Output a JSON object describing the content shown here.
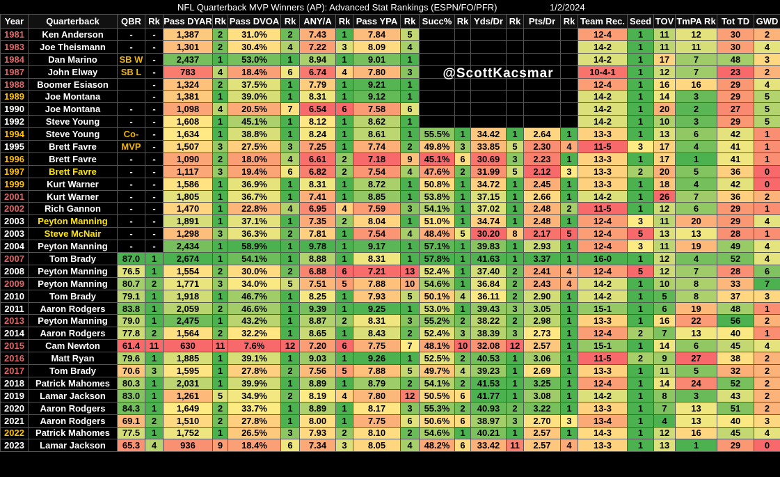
{
  "header": {
    "title": "NFL Quarterback MVP Winners (AP): Advanced Stat Rankings (ESPN/FO/PFR)",
    "date": "1/2/2024"
  },
  "watermark": "@ScottKacsmar",
  "table": {
    "columns": [
      "Year",
      "Quarterback",
      "QBR",
      "Rk",
      "Pass DYAR",
      "Rk",
      "Pass DVOA",
      "Rk",
      "ANY/A",
      "Rk",
      "Pass YPA",
      "Rk",
      "Succ%",
      "Rk",
      "Yds/Dr",
      "Rk",
      "Pts/Dr",
      "Rk",
      "Team Rec.",
      "Seed",
      "TOV",
      "TmPA Rk",
      "Tot TD",
      "GWD"
    ],
    "rows": [
      [
        "1981",
        "Ken Anderson",
        "-",
        "-",
        "1,387",
        "2",
        "31.0%",
        "2",
        "7.43",
        "1",
        "7.84",
        "5",
        null,
        null,
        null,
        null,
        null,
        null,
        "12-4",
        "1",
        "11",
        "12",
        "30",
        "2"
      ],
      [
        "1983",
        "Joe Theismann",
        "-",
        "-",
        "1,301",
        "2",
        "30.4%",
        "4",
        "7.22",
        "3",
        "8.09",
        "4",
        null,
        null,
        null,
        null,
        null,
        null,
        "14-2",
        "1",
        "11",
        "11",
        "30",
        "4"
      ],
      [
        "1984",
        "Dan Marino",
        "SB W",
        "-",
        "2,437",
        "1",
        "53.0%",
        "1",
        "8.94",
        "1",
        "9.01",
        "1",
        null,
        null,
        null,
        null,
        null,
        null,
        "14-2",
        "1",
        "17",
        "7",
        "48",
        "3"
      ],
      [
        "1987",
        "John Elway",
        "SB L",
        "-",
        "783",
        "4",
        "18.4%",
        "6",
        "6.74",
        "4",
        "7.80",
        "3",
        null,
        null,
        null,
        null,
        null,
        null,
        "10-4-1",
        "1",
        "12",
        "7",
        "23",
        "2"
      ],
      [
        "1988",
        "Boomer Esiason",
        null,
        "-",
        "1,324",
        "2",
        "37.5%",
        "1",
        "7.79",
        "1",
        "9.21",
        "1",
        null,
        null,
        null,
        null,
        null,
        null,
        "12-4",
        "1",
        "16",
        "16",
        "29",
        "4"
      ],
      [
        "1989",
        "Joe Montana",
        null,
        "-",
        "1,381",
        "1",
        "39.0%",
        "1",
        "8.31",
        "1",
        "9.12",
        "1",
        null,
        null,
        null,
        null,
        null,
        null,
        "14-2",
        "1",
        "14",
        "3",
        "29",
        "5"
      ],
      [
        "1990",
        "Joe Montana",
        "-",
        "-",
        "1,098",
        "4",
        "20.5%",
        "7",
        "6.54",
        "6",
        "7.58",
        "6",
        null,
        null,
        null,
        null,
        null,
        null,
        "14-2",
        "1",
        "20",
        "2",
        "27",
        "5"
      ],
      [
        "1992",
        "Steve Young",
        "-",
        "-",
        "1,608",
        "1",
        "45.1%",
        "1",
        "8.12",
        "1",
        "8.62",
        "1",
        null,
        null,
        null,
        null,
        null,
        null,
        "14-2",
        "1",
        "10",
        "3",
        "29",
        "5"
      ],
      [
        "1994",
        "Steve Young",
        "Co-",
        "-",
        "1,634",
        "1",
        "38.8%",
        "1",
        "8.24",
        "1",
        "8.61",
        "1",
        "55.5%",
        "1",
        "34.42",
        "1",
        "2.64",
        "1",
        "13-3",
        "1",
        "13",
        "6",
        "42",
        "1"
      ],
      [
        "1995",
        "Brett Favre",
        "MVP",
        "-",
        "1,507",
        "3",
        "27.5%",
        "3",
        "7.25",
        "1",
        "7.74",
        "2",
        "49.8%",
        "3",
        "33.85",
        "5",
        "2.30",
        "4",
        "11-5",
        "3",
        "17",
        "4",
        "41",
        "1"
      ],
      [
        "1996",
        "Brett Favre",
        "-",
        "-",
        "1,090",
        "2",
        "18.0%",
        "4",
        "6.61",
        "2",
        "7.18",
        "9",
        "45.1%",
        "6",
        "30.69",
        "3",
        "2.23",
        "1",
        "13-3",
        "1",
        "17",
        "1",
        "41",
        "1"
      ],
      [
        "1997",
        "Brett Favre",
        "-",
        "-",
        "1,117",
        "3",
        "19.4%",
        "6",
        "6.82",
        "2",
        "7.54",
        "4",
        "47.6%",
        "2",
        "31.99",
        "5",
        "2.12",
        "3",
        "13-3",
        "2",
        "20",
        "5",
        "36",
        "0"
      ],
      [
        "1999",
        "Kurt Warner",
        "-",
        "-",
        "1,586",
        "1",
        "36.9%",
        "1",
        "8.31",
        "1",
        "8.72",
        "1",
        "50.8%",
        "1",
        "34.72",
        "1",
        "2.45",
        "1",
        "13-3",
        "1",
        "18",
        "4",
        "42",
        "0"
      ],
      [
        "2001",
        "Kurt Warner",
        "-",
        "-",
        "1,805",
        "1",
        "36.7%",
        "1",
        "7.41",
        "1",
        "8.85",
        "1",
        "53.8%",
        "1",
        "37.15",
        "1",
        "2.66",
        "1",
        "14-2",
        "1",
        "26",
        "7",
        "36",
        "2"
      ],
      [
        "2002",
        "Rich Gannon",
        "-",
        "-",
        "1,470",
        "1",
        "22.8%",
        "4",
        "6.95",
        "4",
        "7.59",
        "3",
        "54.1%",
        "1",
        "37.02",
        "1",
        "2.48",
        "2",
        "11-5",
        "1",
        "12",
        "6",
        "29",
        "1"
      ],
      [
        "2003",
        "Peyton Manning",
        "-",
        "-",
        "1,891",
        "1",
        "37.1%",
        "1",
        "7.35",
        "2",
        "8.04",
        "1",
        "51.0%",
        "1",
        "34.74",
        "1",
        "2.48",
        "1",
        "12-4",
        "3",
        "11",
        "20",
        "29",
        "4"
      ],
      [
        "2003",
        "Steve McNair",
        "-",
        "-",
        "1,298",
        "3",
        "36.3%",
        "2",
        "7.81",
        "1",
        "7.54",
        "4",
        "48.4%",
        "5",
        "30.20",
        "8",
        "2.17",
        "5",
        "12-4",
        "5",
        "13",
        "13",
        "28",
        "1"
      ],
      [
        "2004",
        "Peyton Manning",
        "-",
        "-",
        "2,434",
        "1",
        "58.9%",
        "1",
        "9.78",
        "1",
        "9.17",
        "1",
        "57.1%",
        "1",
        "39.83",
        "1",
        "2.93",
        "1",
        "12-4",
        "3",
        "11",
        "19",
        "49",
        "4"
      ],
      [
        "2007",
        "Tom Brady",
        "87.0",
        "1",
        "2,674",
        "1",
        "54.1%",
        "1",
        "8.88",
        "1",
        "8.31",
        "1",
        "57.8%",
        "1",
        "41.63",
        "1",
        "3.37",
        "1",
        "16-0",
        "1",
        "12",
        "4",
        "52",
        "4"
      ],
      [
        "2008",
        "Peyton Manning",
        "76.5",
        "1",
        "1,554",
        "2",
        "30.0%",
        "2",
        "6.88",
        "6",
        "7.21",
        "13",
        "52.4%",
        "1",
        "37.40",
        "2",
        "2.41",
        "4",
        "12-4",
        "5",
        "12",
        "7",
        "28",
        "6"
      ],
      [
        "2009",
        "Peyton Manning",
        "80.7",
        "2",
        "1,771",
        "3",
        "34.0%",
        "5",
        "7.51",
        "5",
        "7.88",
        "10",
        "54.6%",
        "1",
        "36.84",
        "2",
        "2.43",
        "4",
        "14-2",
        "1",
        "10",
        "8",
        "33",
        "7"
      ],
      [
        "2010",
        "Tom Brady",
        "79.1",
        "1",
        "1,918",
        "1",
        "46.7%",
        "1",
        "8.25",
        "1",
        "7.93",
        "5",
        "50.1%",
        "4",
        "36.11",
        "2",
        "2.90",
        "1",
        "14-2",
        "1",
        "5",
        "8",
        "37",
        "3"
      ],
      [
        "2011",
        "Aaron Rodgers",
        "83.8",
        "1",
        "2,059",
        "2",
        "46.6%",
        "1",
        "9.39",
        "1",
        "9.25",
        "1",
        "53.0%",
        "1",
        "39.43",
        "3",
        "3.05",
        "1",
        "15-1",
        "1",
        "6",
        "19",
        "48",
        "1"
      ],
      [
        "2013",
        "Peyton Manning",
        "79.0",
        "1",
        "2,475",
        "1",
        "43.2%",
        "1",
        "8.87",
        "2",
        "8.31",
        "3",
        "55.2%",
        "2",
        "38.22",
        "2",
        "2.98",
        "1",
        "13-3",
        "1",
        "16",
        "22",
        "56",
        "2"
      ],
      [
        "2014",
        "Aaron Rodgers",
        "77.8",
        "2",
        "1,564",
        "2",
        "32.2%",
        "1",
        "8.65",
        "1",
        "8.43",
        "2",
        "52.4%",
        "3",
        "38.39",
        "3",
        "2.73",
        "1",
        "12-4",
        "2",
        "7",
        "13",
        "40",
        "1"
      ],
      [
        "2015",
        "Cam Newton",
        "61.4",
        "11",
        "630",
        "11",
        "7.6%",
        "12",
        "7.20",
        "6",
        "7.75",
        "7",
        "48.1%",
        "10",
        "32.08",
        "12",
        "2.57",
        "1",
        "15-1",
        "1",
        "14",
        "6",
        "45",
        "4"
      ],
      [
        "2016",
        "Matt Ryan",
        "79.6",
        "1",
        "1,885",
        "1",
        "39.1%",
        "1",
        "9.03",
        "1",
        "9.26",
        "1",
        "52.5%",
        "2",
        "40.53",
        "1",
        "3.06",
        "1",
        "11-5",
        "2",
        "9",
        "27",
        "38",
        "2"
      ],
      [
        "2017",
        "Tom Brady",
        "70.6",
        "3",
        "1,595",
        "1",
        "27.8%",
        "2",
        "7.56",
        "5",
        "7.88",
        "5",
        "49.7%",
        "4",
        "39.23",
        "1",
        "2.69",
        "1",
        "13-3",
        "1",
        "11",
        "5",
        "32",
        "2"
      ],
      [
        "2018",
        "Patrick Mahomes",
        "80.3",
        "1",
        "2,031",
        "1",
        "39.9%",
        "1",
        "8.89",
        "1",
        "8.79",
        "2",
        "54.1%",
        "2",
        "41.53",
        "1",
        "3.25",
        "1",
        "12-4",
        "1",
        "14",
        "24",
        "52",
        "2"
      ],
      [
        "2019",
        "Lamar Jackson",
        "83.0",
        "1",
        "1,261",
        "5",
        "34.9%",
        "2",
        "8.19",
        "4",
        "7.80",
        "12",
        "50.5%",
        "6",
        "41.77",
        "1",
        "3.08",
        "1",
        "14-2",
        "1",
        "8",
        "3",
        "43",
        "2"
      ],
      [
        "2020",
        "Aaron Rodgers",
        "84.3",
        "1",
        "1,649",
        "2",
        "33.7%",
        "1",
        "8.89",
        "1",
        "8.17",
        "3",
        "55.3%",
        "2",
        "40.93",
        "2",
        "3.22",
        "1",
        "13-3",
        "1",
        "7",
        "13",
        "51",
        "2"
      ],
      [
        "2021",
        "Aaron Rodgers",
        "69.1",
        "2",
        "1,510",
        "2",
        "27.8%",
        "1",
        "8.00",
        "1",
        "7.75",
        "6",
        "50.6%",
        "6",
        "38.97",
        "3",
        "2.70",
        "3",
        "13-4",
        "1",
        "4",
        "13",
        "40",
        "3"
      ],
      [
        "2022",
        "Patrick Mahomes",
        "77.5",
        "1",
        "1,752",
        "1",
        "26.5%",
        "3",
        "7.93",
        "2",
        "8.10",
        "2",
        "54.6%",
        "1",
        "40.21",
        "1",
        "2.57",
        "1",
        "14-3",
        "1",
        "12",
        "16",
        "45",
        "4"
      ],
      [
        "2023",
        "Lamar Jackson",
        "65.3",
        "4",
        "936",
        "9",
        "18.4%",
        "6",
        "7.34",
        "3",
        "8.05",
        "4",
        "48.2%",
        "6",
        "33.42",
        "11",
        "2.57",
        "4",
        "13-3",
        "1",
        "13",
        "1",
        "29",
        "0"
      ]
    ],
    "year_colors": [
      "#e06666",
      "#e06666",
      "#e06666",
      "#e06666",
      "#e06666",
      "#ffc000",
      "#ffffff",
      "#ffffff",
      "#ffc000",
      "#ffffff",
      "#ffc000",
      "#ffc000",
      "#ffc000",
      "#e06666",
      "#e06666",
      "#ffffff",
      "#ffffff",
      "#ffffff",
      "#e06666",
      "#ffffff",
      "#e06666",
      "#ffffff",
      "#ffffff",
      "#e06666",
      "#ffffff",
      "#e06666",
      "#e06666",
      "#e06666",
      "#ffffff",
      "#ffffff",
      "#ffffff",
      "#ffffff",
      "#ffc000",
      "#ffffff"
    ],
    "name_colors": [
      "#ffffff",
      "#ffffff",
      "#ffffff",
      "#ffffff",
      "#ffffff",
      "#ffffff",
      "#ffffff",
      "#ffffff",
      "#ffffff",
      "#ffffff",
      "#ffffff",
      "#ffe600",
      "#ffffff",
      "#ffffff",
      "#ffffff",
      "#ffe600",
      "#ffe600",
      "#ffffff",
      "#ffffff",
      "#ffffff",
      "#ffffff",
      "#ffffff",
      "#ffffff",
      "#ffffff",
      "#ffffff",
      "#ffffff",
      "#ffffff",
      "#ffffff",
      "#ffffff",
      "#ffffff",
      "#ffffff",
      "#ffffff",
      "#ffffff",
      "#ffffff"
    ],
    "note_color": "#f0b400"
  }
}
